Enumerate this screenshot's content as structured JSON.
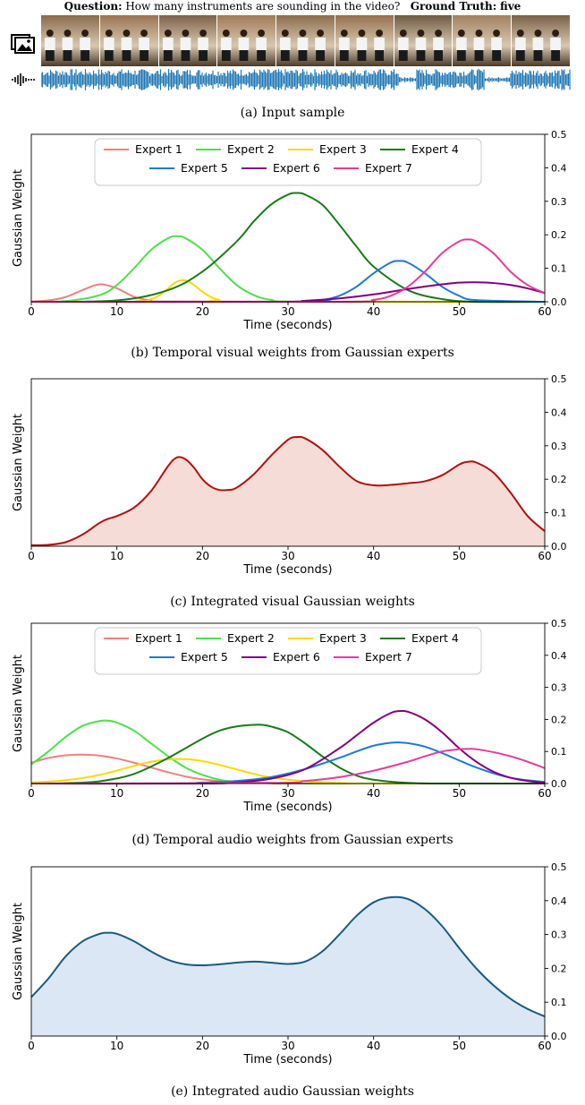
{
  "header": {
    "question_label": "Question:",
    "question_text": "How many instruments are sounding in the video?",
    "truth_label": "Ground Truth:",
    "truth_value": "five"
  },
  "captions": {
    "a": "(a) Input sample",
    "b": "(b) Temporal visual weights from Gaussian experts",
    "c": "(c) Integrated visual Gaussian weights",
    "d": "(d) Temporal audio weights from Gaussian experts",
    "e": "(e) Integrated audio Gaussian weights"
  },
  "icons": {
    "image": "image-icon",
    "audio": "audio-wave-icon"
  },
  "chart_data": [
    {
      "id": "b",
      "type": "line",
      "xlabel": "Time (seconds)",
      "ylabel": "Gaussian Weight",
      "xlim": [
        0,
        60
      ],
      "ylim": [
        0,
        0.5
      ],
      "xticks": [
        "0",
        "10",
        "20",
        "30",
        "40",
        "50",
        "60"
      ],
      "yticks": [
        "0.0",
        "0.1",
        "0.2",
        "0.3",
        "0.4",
        "0.5"
      ],
      "legend": "top-center",
      "grid": false,
      "series": [
        {
          "name": "Expert 1",
          "color": "#f08080",
          "x": [
            0,
            2,
            4,
            6,
            8,
            10,
            12,
            14,
            16,
            60
          ],
          "values": [
            0.001,
            0.004,
            0.014,
            0.035,
            0.052,
            0.04,
            0.015,
            0.004,
            0.001,
            0.0
          ]
        },
        {
          "name": "Expert 2",
          "color": "#4ce04c",
          "x": [
            0,
            4,
            8,
            10,
            12,
            14,
            16,
            17,
            18,
            20,
            22,
            24,
            26,
            28,
            32,
            60
          ],
          "values": [
            0.0,
            0.002,
            0.02,
            0.05,
            0.1,
            0.155,
            0.19,
            0.196,
            0.19,
            0.155,
            0.1,
            0.05,
            0.02,
            0.006,
            0.0,
            0.0
          ]
        },
        {
          "name": "Expert 3",
          "color": "#ffd700",
          "x": [
            0,
            12,
            14,
            15,
            16,
            17,
            18,
            19,
            20,
            21,
            22,
            24,
            60
          ],
          "values": [
            0.0,
            0.0,
            0.008,
            0.02,
            0.04,
            0.06,
            0.064,
            0.05,
            0.03,
            0.014,
            0.005,
            0.0,
            0.0
          ]
        },
        {
          "name": "Expert 4",
          "color": "#1a7a1a",
          "x": [
            0,
            10,
            16,
            20,
            24,
            26,
            28,
            30,
            31,
            32,
            34,
            36,
            38,
            40,
            44,
            48,
            52,
            60
          ],
          "values": [
            0.0,
            0.004,
            0.035,
            0.09,
            0.18,
            0.24,
            0.29,
            0.32,
            0.325,
            0.32,
            0.29,
            0.23,
            0.165,
            0.105,
            0.035,
            0.008,
            0.0,
            0.0
          ]
        },
        {
          "name": "Expert 5",
          "color": "#1f78d8",
          "x": [
            0,
            32,
            34,
            36,
            38,
            40,
            42,
            43,
            44,
            46,
            48,
            50,
            52,
            60
          ],
          "values": [
            0.0,
            0.0,
            0.005,
            0.018,
            0.045,
            0.085,
            0.117,
            0.122,
            0.117,
            0.085,
            0.045,
            0.018,
            0.005,
            0.0
          ]
        },
        {
          "name": "Expert 6",
          "color": "#800080",
          "x": [
            0,
            28,
            32,
            36,
            40,
            44,
            48,
            50,
            52,
            54,
            56,
            58,
            60
          ],
          "values": [
            0.0,
            0.0,
            0.003,
            0.01,
            0.022,
            0.038,
            0.052,
            0.057,
            0.058,
            0.056,
            0.05,
            0.04,
            0.026
          ]
        },
        {
          "name": "Expert 7",
          "color": "#e83a9a",
          "x": [
            0,
            36,
            40,
            42,
            44,
            46,
            48,
            50,
            51,
            52,
            54,
            56,
            58,
            60
          ],
          "values": [
            0.0,
            0.0,
            0.006,
            0.018,
            0.045,
            0.09,
            0.145,
            0.18,
            0.186,
            0.18,
            0.145,
            0.09,
            0.05,
            0.026
          ]
        }
      ]
    },
    {
      "id": "c",
      "type": "area",
      "xlabel": "Time (seconds)",
      "ylabel": "Gaussian Weight",
      "xlim": [
        0,
        60
      ],
      "ylim": [
        0,
        0.5
      ],
      "xticks": [
        "0",
        "10",
        "20",
        "30",
        "40",
        "50",
        "60"
      ],
      "yticks": [
        "0.0",
        "0.1",
        "0.2",
        "0.3",
        "0.4",
        "0.5"
      ],
      "grid": false,
      "series": [
        {
          "color": "#b01010",
          "fill": "#f5dcd6",
          "x": [
            0,
            2,
            4,
            6,
            8,
            9,
            10,
            12,
            14,
            16,
            17,
            18,
            19,
            20,
            21,
            22,
            23,
            24,
            26,
            28,
            30,
            31,
            32,
            34,
            36,
            38,
            40,
            42,
            44,
            46,
            48,
            50,
            51,
            52,
            54,
            56,
            58,
            60
          ],
          "values": [
            0.003,
            0.004,
            0.012,
            0.035,
            0.07,
            0.082,
            0.09,
            0.115,
            0.165,
            0.24,
            0.265,
            0.26,
            0.235,
            0.2,
            0.178,
            0.168,
            0.168,
            0.175,
            0.215,
            0.27,
            0.318,
            0.326,
            0.322,
            0.288,
            0.238,
            0.195,
            0.182,
            0.183,
            0.188,
            0.194,
            0.212,
            0.244,
            0.252,
            0.25,
            0.22,
            0.16,
            0.09,
            0.045
          ]
        }
      ]
    },
    {
      "id": "d",
      "type": "line",
      "xlabel": "Time (seconds)",
      "ylabel": "Gaussian Weight",
      "xlim": [
        0,
        60
      ],
      "ylim": [
        0,
        0.5
      ],
      "xticks": [
        "0",
        "10",
        "20",
        "30",
        "40",
        "50",
        "60"
      ],
      "yticks": [
        "0.0",
        "0.1",
        "0.2",
        "0.3",
        "0.4",
        "0.5"
      ],
      "legend": "top-center",
      "grid": false,
      "series": [
        {
          "name": "Expert 1",
          "color": "#f08080",
          "x": [
            0,
            2,
            4,
            6,
            8,
            10,
            12,
            14,
            16,
            18,
            20,
            24,
            28,
            32,
            60
          ],
          "values": [
            0.065,
            0.08,
            0.088,
            0.09,
            0.087,
            0.078,
            0.065,
            0.05,
            0.035,
            0.022,
            0.013,
            0.004,
            0.001,
            0.0,
            0.0
          ]
        },
        {
          "name": "Expert 2",
          "color": "#4ce04c",
          "x": [
            0,
            2,
            4,
            6,
            8,
            9,
            10,
            12,
            14,
            16,
            18,
            20,
            22,
            24,
            28,
            32,
            60
          ],
          "values": [
            0.06,
            0.1,
            0.145,
            0.18,
            0.195,
            0.196,
            0.19,
            0.165,
            0.125,
            0.085,
            0.05,
            0.027,
            0.012,
            0.005,
            0.001,
            0.0,
            0.0
          ]
        },
        {
          "name": "Expert 3",
          "color": "#ffd700",
          "x": [
            0,
            4,
            8,
            12,
            14,
            16,
            18,
            20,
            22,
            24,
            26,
            28,
            32,
            36,
            40,
            60
          ],
          "values": [
            0.003,
            0.01,
            0.027,
            0.055,
            0.068,
            0.075,
            0.076,
            0.07,
            0.058,
            0.044,
            0.03,
            0.019,
            0.007,
            0.002,
            0.0,
            0.0
          ]
        },
        {
          "name": "Expert 4",
          "color": "#1a7a1a",
          "x": [
            0,
            4,
            8,
            12,
            16,
            20,
            22,
            24,
            26,
            27,
            28,
            30,
            32,
            34,
            36,
            38,
            40,
            44,
            48,
            60
          ],
          "values": [
            0.0,
            0.001,
            0.007,
            0.03,
            0.08,
            0.14,
            0.165,
            0.178,
            0.183,
            0.183,
            0.178,
            0.16,
            0.125,
            0.085,
            0.05,
            0.025,
            0.012,
            0.002,
            0.0,
            0.0
          ]
        },
        {
          "name": "Expert 5",
          "color": "#1f78d8",
          "x": [
            0,
            16,
            20,
            24,
            28,
            32,
            36,
            38,
            40,
            42,
            43,
            44,
            46,
            48,
            50,
            52,
            54,
            56,
            58,
            60
          ],
          "values": [
            0.0,
            0.0,
            0.003,
            0.008,
            0.02,
            0.045,
            0.08,
            0.1,
            0.118,
            0.127,
            0.128,
            0.126,
            0.115,
            0.095,
            0.072,
            0.05,
            0.032,
            0.018,
            0.01,
            0.005
          ]
        },
        {
          "name": "Expert 6",
          "color": "#800080",
          "x": [
            0,
            20,
            24,
            28,
            32,
            36,
            38,
            40,
            42,
            43,
            44,
            46,
            48,
            50,
            52,
            54,
            56,
            58,
            60
          ],
          "values": [
            0.0,
            0.0,
            0.004,
            0.015,
            0.045,
            0.11,
            0.15,
            0.19,
            0.22,
            0.226,
            0.224,
            0.2,
            0.16,
            0.11,
            0.068,
            0.037,
            0.018,
            0.008,
            0.003
          ]
        },
        {
          "name": "Expert 7",
          "color": "#e83a9a",
          "x": [
            0,
            28,
            32,
            36,
            40,
            44,
            46,
            48,
            50,
            51,
            52,
            54,
            56,
            58,
            60
          ],
          "values": [
            0.0,
            0.002,
            0.008,
            0.02,
            0.04,
            0.068,
            0.085,
            0.1,
            0.107,
            0.108,
            0.107,
            0.098,
            0.085,
            0.068,
            0.048
          ]
        }
      ]
    },
    {
      "id": "e",
      "type": "area",
      "xlabel": "Time (seconds)",
      "ylabel": "Gaussian Weight",
      "xlim": [
        0,
        60
      ],
      "ylim": [
        0,
        0.5
      ],
      "xticks": [
        "0",
        "10",
        "20",
        "30",
        "40",
        "50",
        "60"
      ],
      "yticks": [
        "0.0",
        "0.1",
        "0.2",
        "0.3",
        "0.4",
        "0.5"
      ],
      "grid": false,
      "series": [
        {
          "color": "#1a5a7d",
          "fill": "#dbe7f4",
          "x": [
            0,
            2,
            4,
            6,
            8,
            9,
            10,
            12,
            14,
            16,
            18,
            20,
            22,
            24,
            26,
            28,
            30,
            32,
            34,
            36,
            38,
            40,
            42,
            44,
            46,
            48,
            50,
            52,
            54,
            56,
            58,
            60
          ],
          "values": [
            0.115,
            0.17,
            0.235,
            0.28,
            0.302,
            0.305,
            0.302,
            0.28,
            0.25,
            0.225,
            0.212,
            0.209,
            0.212,
            0.217,
            0.22,
            0.217,
            0.213,
            0.22,
            0.25,
            0.3,
            0.355,
            0.395,
            0.41,
            0.405,
            0.375,
            0.325,
            0.26,
            0.2,
            0.15,
            0.11,
            0.08,
            0.058
          ]
        }
      ]
    }
  ]
}
